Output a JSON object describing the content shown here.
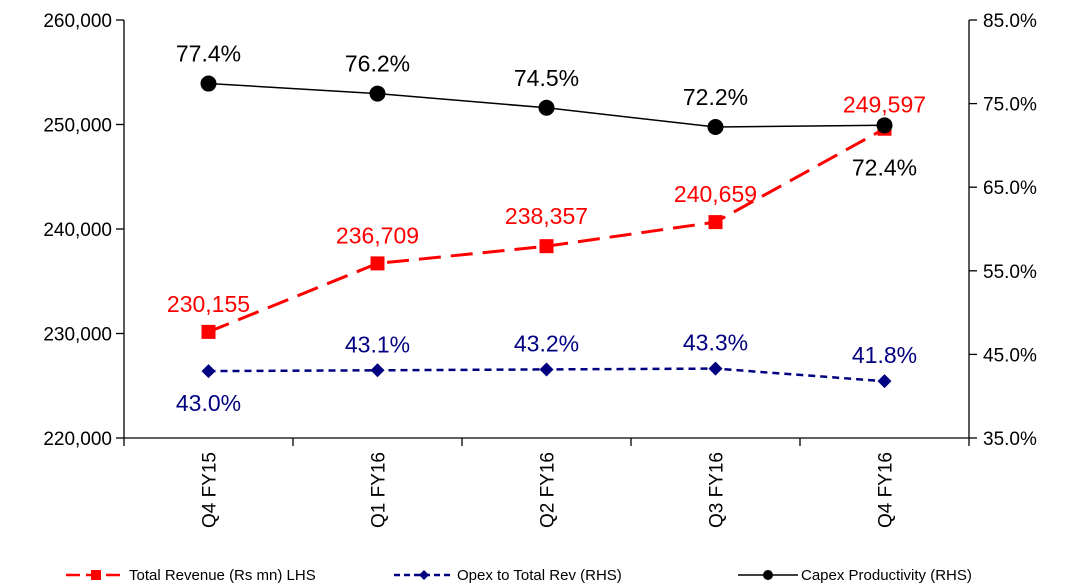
{
  "chart_data": {
    "type": "line",
    "categories": [
      "Q4 FY15",
      "Q1 FY16",
      "Q2 FY16",
      "Q3 FY16",
      "Q4 FY16"
    ],
    "left_axis": {
      "ylim": [
        220000,
        260000
      ],
      "ticks": [
        "220,000",
        "230,000",
        "240,000",
        "250,000",
        "260,000"
      ]
    },
    "right_axis": {
      "ylim": [
        35.0,
        85.0
      ],
      "ticks": [
        "35.0%",
        "45.0%",
        "55.0%",
        "65.0%",
        "75.0%",
        "85.0%"
      ]
    },
    "series": [
      {
        "name": "Total Revenue (Rs mn) LHS",
        "axis": "left",
        "color": "#ff0000",
        "line_style": "dashed",
        "marker": "square",
        "values": [
          230155,
          236709,
          238357,
          240659,
          249597
        ],
        "labels": [
          "230,155",
          "236,709",
          "238,357",
          "240,659",
          "249,597"
        ]
      },
      {
        "name": "Opex to Total Rev (RHS)",
        "axis": "right",
        "color": "#000080",
        "line_style": "dotted",
        "marker": "diamond",
        "values": [
          43.0,
          43.1,
          43.2,
          43.3,
          41.8
        ],
        "labels": [
          "43.0%",
          "43.1%",
          "43.2%",
          "43.3%",
          "41.8%"
        ]
      },
      {
        "name": "Capex Productivity (RHS)",
        "axis": "right",
        "color": "#000000",
        "line_style": "solid",
        "marker": "circle",
        "values": [
          77.4,
          76.2,
          74.5,
          72.2,
          72.4
        ],
        "labels": [
          "77.4%",
          "76.2%",
          "74.5%",
          "72.2%",
          "72.4%"
        ]
      }
    ],
    "grid": false,
    "legend_position": "bottom"
  }
}
